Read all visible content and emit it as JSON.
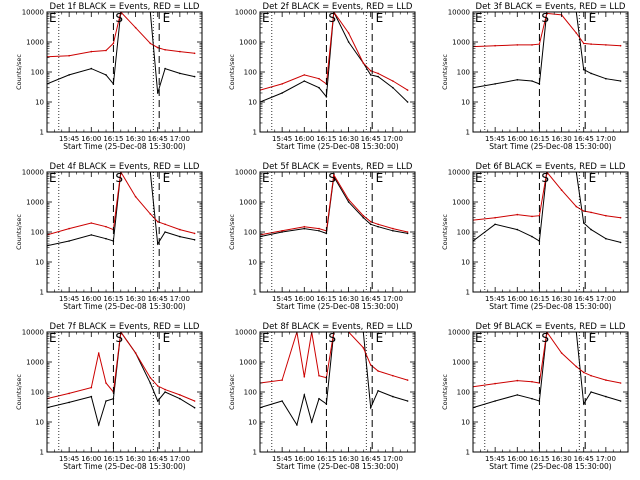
{
  "chart_data": [
    {
      "type": "line",
      "title": "Det 1f BLACK = Events, RED = LLD",
      "ylabel": "Counts/sec",
      "xlabel": "Start Time (25-Dec-08 15:30:00)",
      "y_scale": "log",
      "ylim": [
        1,
        10000
      ],
      "xlim": [
        "15:30",
        "17:15"
      ],
      "x_ticks": [
        "15:45",
        "16:00",
        "16:15",
        "16:30",
        "16:45",
        "17:00"
      ],
      "y_ticks": [
        "1",
        "10",
        "100",
        "1000",
        "10000"
      ],
      "markers": [
        "E",
        "S",
        "E"
      ],
      "marker_times": [
        "15:30",
        "16:15",
        "16:47"
      ],
      "dotted_times": [
        "15:38",
        "16:42"
      ],
      "dashed_times": [
        "16:15",
        "16:46"
      ],
      "grid": false,
      "series": [
        {
          "color": "#000000",
          "x": [
            "15:30",
            "15:45",
            "16:00",
            "16:10",
            "16:15",
            "16:20",
            "16:30",
            "16:40",
            "16:45",
            "16:50",
            "17:00",
            "17:10"
          ],
          "y": [
            40,
            80,
            130,
            80,
            40,
            10000,
            10000,
            10000,
            20,
            130,
            90,
            70
          ]
        },
        {
          "color": "#cc0000",
          "x": [
            "15:30",
            "15:45",
            "16:00",
            "16:10",
            "16:15",
            "16:20",
            "16:30",
            "16:40",
            "16:45",
            "16:50",
            "17:00",
            "17:10"
          ],
          "y": [
            320,
            350,
            480,
            520,
            900,
            10000,
            3000,
            900,
            650,
            550,
            480,
            420
          ]
        }
      ]
    },
    {
      "type": "line",
      "title": "Det 2f BLACK = Events, RED = LLD",
      "ylabel": "Counts/sec",
      "xlabel": "Start Time (25-Dec-08 15:30:00)",
      "y_scale": "log",
      "ylim": [
        1,
        10000
      ],
      "xlim": [
        "15:30",
        "17:15"
      ],
      "x_ticks": [
        "15:45",
        "16:00",
        "16:15",
        "16:30",
        "16:45",
        "17:00"
      ],
      "y_ticks": [
        "1",
        "10",
        "100",
        "1000",
        "10000"
      ],
      "markers": [
        "E",
        "S",
        "E"
      ],
      "marker_times": [
        "15:30",
        "16:15",
        "16:47"
      ],
      "dotted_times": [
        "15:38",
        "16:42"
      ],
      "dashed_times": [
        "16:15",
        "16:46"
      ],
      "grid": false,
      "series": [
        {
          "color": "#000000",
          "x": [
            "15:30",
            "15:45",
            "16:00",
            "16:10",
            "16:15",
            "16:20",
            "16:30",
            "16:40",
            "16:45",
            "16:50",
            "17:00",
            "17:10"
          ],
          "y": [
            10,
            20,
            50,
            30,
            15,
            10000,
            1000,
            200,
            80,
            70,
            30,
            10
          ]
        },
        {
          "color": "#cc0000",
          "x": [
            "15:30",
            "15:45",
            "16:00",
            "16:10",
            "16:15",
            "16:20",
            "16:30",
            "16:40",
            "16:45",
            "16:50",
            "17:00",
            "17:10"
          ],
          "y": [
            25,
            40,
            80,
            60,
            40,
            10000,
            2000,
            200,
            110,
            90,
            50,
            25
          ]
        }
      ]
    },
    {
      "type": "line",
      "title": "Det 3f BLACK = Events, RED = LLD",
      "ylabel": "Counts/sec",
      "xlabel": "Start Time (25-Dec-08 15:30:00)",
      "y_scale": "log",
      "ylim": [
        1,
        10000
      ],
      "xlim": [
        "15:30",
        "17:15"
      ],
      "x_ticks": [
        "15:45",
        "16:00",
        "16:15",
        "16:30",
        "16:45",
        "17:00"
      ],
      "y_ticks": [
        "1",
        "10",
        "100",
        "1000",
        "10000"
      ],
      "markers": [
        "E",
        "S",
        "E"
      ],
      "marker_times": [
        "15:30",
        "16:15",
        "16:47"
      ],
      "dotted_times": [
        "15:38",
        "16:42"
      ],
      "dashed_times": [
        "16:15",
        "16:46"
      ],
      "grid": false,
      "series": [
        {
          "color": "#000000",
          "x": [
            "15:30",
            "15:45",
            "16:00",
            "16:10",
            "16:15",
            "16:20",
            "16:30",
            "16:40",
            "16:45",
            "16:50",
            "17:00",
            "17:10"
          ],
          "y": [
            30,
            40,
            55,
            50,
            40,
            10000,
            10000,
            10000,
            120,
            90,
            60,
            50
          ]
        },
        {
          "color": "#cc0000",
          "x": [
            "15:30",
            "15:45",
            "16:00",
            "16:10",
            "16:15",
            "16:20",
            "16:30",
            "16:40",
            "16:45",
            "16:50",
            "17:00",
            "17:10"
          ],
          "y": [
            700,
            750,
            800,
            800,
            850,
            9000,
            8000,
            2000,
            900,
            850,
            800,
            750
          ]
        }
      ]
    },
    {
      "type": "line",
      "title": "Det 4f BLACK = Events, RED = LLD",
      "ylabel": "Counts/sec",
      "xlabel": "Start Time (25-Dec-08 15:30:00)",
      "y_scale": "log",
      "ylim": [
        1,
        10000
      ],
      "xlim": [
        "15:30",
        "17:15"
      ],
      "x_ticks": [
        "15:45",
        "16:00",
        "16:15",
        "16:30",
        "16:45",
        "17:00"
      ],
      "y_ticks": [
        "1",
        "10",
        "100",
        "1000",
        "10000"
      ],
      "markers": [
        "E",
        "S",
        "E"
      ],
      "marker_times": [
        "15:30",
        "16:15",
        "16:47"
      ],
      "dotted_times": [
        "15:38",
        "16:42"
      ],
      "dashed_times": [
        "16:15",
        "16:46"
      ],
      "grid": false,
      "series": [
        {
          "color": "#000000",
          "x": [
            "15:30",
            "15:45",
            "16:00",
            "16:10",
            "16:15",
            "16:20",
            "16:30",
            "16:40",
            "16:45",
            "16:50",
            "17:00",
            "17:10"
          ],
          "y": [
            35,
            50,
            80,
            60,
            50,
            10000,
            10000,
            10000,
            40,
            100,
            70,
            55
          ]
        },
        {
          "color": "#cc0000",
          "x": [
            "15:30",
            "15:45",
            "16:00",
            "16:10",
            "16:15",
            "16:20",
            "16:30",
            "16:40",
            "16:45",
            "16:50",
            "17:00",
            "17:10"
          ],
          "y": [
            80,
            130,
            200,
            150,
            120,
            10000,
            1500,
            400,
            220,
            180,
            120,
            90
          ]
        }
      ]
    },
    {
      "type": "line",
      "title": "Det 5f BLACK = Events, RED = LLD",
      "ylabel": "Counts/sec",
      "xlabel": "Start Time (25-Dec-08 15:30:00)",
      "y_scale": "log",
      "ylim": [
        1,
        10000
      ],
      "xlim": [
        "15:30",
        "17:15"
      ],
      "x_ticks": [
        "15:45",
        "16:00",
        "16:15",
        "16:30",
        "16:45",
        "17:00"
      ],
      "y_ticks": [
        "1",
        "10",
        "100",
        "1000",
        "10000"
      ],
      "markers": [
        "E",
        "S",
        "E"
      ],
      "marker_times": [
        "15:30",
        "16:15",
        "16:47"
      ],
      "dotted_times": [
        "15:38",
        "16:42"
      ],
      "dashed_times": [
        "16:15",
        "16:46"
      ],
      "grid": false,
      "series": [
        {
          "color": "#000000",
          "x": [
            "15:30",
            "15:45",
            "16:00",
            "16:10",
            "16:15",
            "16:20",
            "16:30",
            "16:40",
            "16:45",
            "16:50",
            "17:00",
            "17:10"
          ],
          "y": [
            70,
            100,
            130,
            110,
            90,
            7000,
            1000,
            300,
            180,
            150,
            110,
            90
          ]
        },
        {
          "color": "#cc0000",
          "x": [
            "15:30",
            "15:45",
            "16:00",
            "16:10",
            "16:15",
            "16:20",
            "16:30",
            "16:40",
            "16:45",
            "16:50",
            "17:00",
            "17:10"
          ],
          "y": [
            80,
            110,
            150,
            130,
            110,
            8000,
            1200,
            350,
            220,
            180,
            130,
            100
          ]
        }
      ]
    },
    {
      "type": "line",
      "title": "Det 6f BLACK = Events, RED = LLD",
      "ylabel": "Counts/sec",
      "xlabel": "Start Time (25-Dec-08 15:30:00)",
      "y_scale": "log",
      "ylim": [
        1,
        10000
      ],
      "xlim": [
        "15:30",
        "17:15"
      ],
      "x_ticks": [
        "15:45",
        "16:00",
        "16:15",
        "16:30",
        "16:45",
        "17:00"
      ],
      "y_ticks": [
        "1",
        "10",
        "100",
        "1000",
        "10000"
      ],
      "markers": [
        "E",
        "S",
        "E"
      ],
      "marker_times": [
        "15:30",
        "16:15",
        "16:47"
      ],
      "dotted_times": [
        "15:38",
        "16:42"
      ],
      "dashed_times": [
        "16:15",
        "16:46"
      ],
      "grid": false,
      "series": [
        {
          "color": "#000000",
          "x": [
            "15:30",
            "15:45",
            "16:00",
            "16:10",
            "16:15",
            "16:20",
            "16:30",
            "16:40",
            "16:45",
            "16:50",
            "17:00",
            "17:10"
          ],
          "y": [
            50,
            180,
            120,
            70,
            50,
            10000,
            10000,
            10000,
            200,
            120,
            60,
            45
          ]
        },
        {
          "color": "#cc0000",
          "x": [
            "15:30",
            "15:45",
            "16:00",
            "16:10",
            "16:15",
            "16:20",
            "16:30",
            "16:40",
            "16:45",
            "16:50",
            "17:00",
            "17:10"
          ],
          "y": [
            250,
            300,
            380,
            330,
            350,
            10000,
            2500,
            700,
            500,
            450,
            350,
            300
          ]
        }
      ]
    },
    {
      "type": "line",
      "title": "Det 7f BLACK = Events, RED = LLD",
      "ylabel": "Counts/sec",
      "xlabel": "Start Time (25-Dec-08 15:30:00)",
      "y_scale": "log",
      "ylim": [
        1,
        10000
      ],
      "xlim": [
        "15:30",
        "17:15"
      ],
      "x_ticks": [
        "15:45",
        "16:00",
        "16:15",
        "16:30",
        "16:45",
        "17:00"
      ],
      "y_ticks": [
        "1",
        "10",
        "100",
        "1000",
        "10000"
      ],
      "markers": [
        "E",
        "S",
        "E"
      ],
      "marker_times": [
        "15:30",
        "16:15",
        "16:47"
      ],
      "dotted_times": [
        "15:38",
        "16:42"
      ],
      "dashed_times": [
        "16:15",
        "16:46"
      ],
      "grid": false,
      "series": [
        {
          "color": "#000000",
          "x": [
            "15:30",
            "15:45",
            "16:00",
            "16:05",
            "16:10",
            "16:15",
            "16:20",
            "16:30",
            "16:40",
            "16:45",
            "16:50",
            "17:00",
            "17:10"
          ],
          "y": [
            30,
            45,
            70,
            8,
            50,
            60,
            10000,
            2000,
            200,
            50,
            100,
            60,
            30
          ]
        },
        {
          "color": "#cc0000",
          "x": [
            "15:30",
            "15:45",
            "16:00",
            "16:05",
            "16:10",
            "16:15",
            "16:20",
            "16:30",
            "16:40",
            "16:45",
            "16:50",
            "17:00",
            "17:10"
          ],
          "y": [
            60,
            90,
            140,
            2000,
            200,
            100,
            10000,
            2000,
            300,
            160,
            120,
            80,
            50
          ]
        }
      ]
    },
    {
      "type": "line",
      "title": "Det 8f BLACK = Events, RED = LLD",
      "ylabel": "Counts/sec",
      "xlabel": "Start Time (25-Dec-08 15:30:00)",
      "y_scale": "log",
      "ylim": [
        1,
        10000
      ],
      "xlim": [
        "15:30",
        "17:15"
      ],
      "x_ticks": [
        "15:45",
        "16:00",
        "16:15",
        "16:30",
        "16:45",
        "17:00"
      ],
      "y_ticks": [
        "1",
        "10",
        "100",
        "1000",
        "10000"
      ],
      "markers": [
        "E",
        "S",
        "E"
      ],
      "marker_times": [
        "15:30",
        "16:15",
        "16:47"
      ],
      "dotted_times": [
        "15:38",
        "16:42"
      ],
      "dashed_times": [
        "16:15",
        "16:46"
      ],
      "grid": false,
      "series": [
        {
          "color": "#000000",
          "x": [
            "15:30",
            "15:45",
            "15:55",
            "16:00",
            "16:05",
            "16:10",
            "16:15",
            "16:20",
            "16:30",
            "16:40",
            "16:45",
            "16:50",
            "17:00",
            "17:10"
          ],
          "y": [
            30,
            50,
            8,
            80,
            10,
            60,
            40,
            10000,
            10000,
            10000,
            30,
            110,
            70,
            50
          ]
        },
        {
          "color": "#cc0000",
          "x": [
            "15:30",
            "15:45",
            "15:55",
            "16:00",
            "16:05",
            "16:10",
            "16:15",
            "16:20",
            "16:30",
            "16:40",
            "16:45",
            "16:50",
            "17:00",
            "17:10"
          ],
          "y": [
            200,
            250,
            10000,
            320,
            10000,
            350,
            300,
            10000,
            10000,
            3000,
            800,
            500,
            350,
            250
          ]
        }
      ]
    },
    {
      "type": "line",
      "title": "Det 9f BLACK = Events, RED = LLD",
      "ylabel": "Counts/sec",
      "xlabel": "Start Time (25-Dec-08 15:30:00)",
      "y_scale": "log",
      "ylim": [
        1,
        10000
      ],
      "xlim": [
        "15:30",
        "17:15"
      ],
      "x_ticks": [
        "15:45",
        "16:00",
        "16:15",
        "16:30",
        "16:45",
        "17:00"
      ],
      "y_ticks": [
        "1",
        "10",
        "100",
        "1000",
        "10000"
      ],
      "markers": [
        "E",
        "S",
        "E"
      ],
      "marker_times": [
        "15:30",
        "16:15",
        "16:47"
      ],
      "dotted_times": [
        "15:38",
        "16:42"
      ],
      "dashed_times": [
        "16:15",
        "16:46"
      ],
      "grid": false,
      "series": [
        {
          "color": "#000000",
          "x": [
            "15:30",
            "15:45",
            "16:00",
            "16:10",
            "16:15",
            "16:20",
            "16:30",
            "16:40",
            "16:45",
            "16:50",
            "17:00",
            "17:10"
          ],
          "y": [
            30,
            50,
            80,
            60,
            50,
            10000,
            10000,
            10000,
            40,
            100,
            70,
            50
          ]
        },
        {
          "color": "#cc0000",
          "x": [
            "15:30",
            "15:45",
            "16:00",
            "16:10",
            "16:15",
            "16:20",
            "16:30",
            "16:40",
            "16:45",
            "16:50",
            "17:00",
            "17:10"
          ],
          "y": [
            150,
            190,
            240,
            220,
            200,
            10000,
            2000,
            700,
            450,
            350,
            250,
            200
          ]
        }
      ]
    }
  ]
}
